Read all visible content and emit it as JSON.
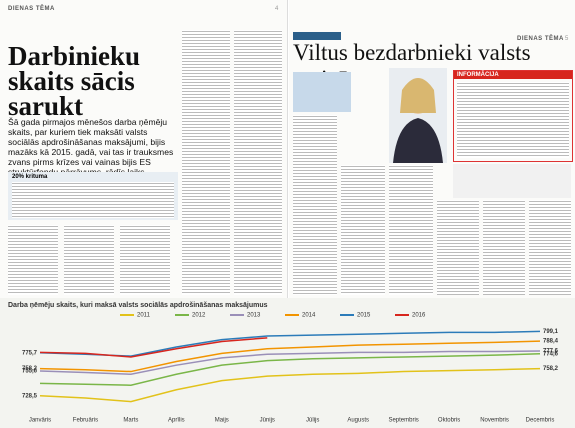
{
  "left_page": {
    "section": "DIENAS TĒMA",
    "page_number": "4",
    "headline": "Darbinieku skaits sācis sarukt",
    "lead": "Šā gada pirmajos mēnešos darba ņēmēju skaits, par kuriem tiek maksāti valsts sociālās apdrošināšanas maksājumi, bijis mazāks kā 2015. gadā, vai tas ir trauksmes zvans pirms krīzes vai vainas bijis ES struktūrfondu pārrāvums, rādīs laiks",
    "box_title": "20% krituma"
  },
  "right_page": {
    "section": "DIENAS TĒMA",
    "page_number": "5",
    "headline": "Viltus bezdarbnieki valsts maizē",
    "info_title": "INFORMĀCIJA"
  },
  "chart_data": {
    "type": "line",
    "title": "Darba ņēmēju skaits, kuri maksā valsts sociālās apdrošināšanas maksājumus",
    "categories": [
      "Janvāris",
      "Februāris",
      "Marts",
      "Aprīlis",
      "Maijs",
      "Jūnijs",
      "Jūlijs",
      "Augusts",
      "Septembris",
      "Oktobris",
      "Novembris",
      "Decembris"
    ],
    "ylim": [
      715,
      805
    ],
    "series": [
      {
        "name": "2011",
        "color": "#e2c21a",
        "values": [
          728.5,
          726,
          722,
          735,
          745,
          750,
          752,
          753,
          755,
          756,
          757,
          758.2
        ],
        "value_labels": [
          "728,5",
          null,
          null,
          null,
          null,
          null,
          null,
          null,
          null,
          null,
          null,
          "758,2"
        ]
      },
      {
        "name": "2012",
        "color": "#7ab648",
        "values": [
          742,
          741,
          740,
          752,
          762,
          767,
          769,
          770,
          771,
          772,
          773,
          774.6
        ],
        "value_labels": [
          null,
          null,
          null,
          null,
          null,
          null,
          null,
          null,
          null,
          null,
          null,
          "774,6"
        ]
      },
      {
        "name": "2013",
        "color": "#9a8fb8",
        "values": [
          755.6,
          754,
          752,
          762,
          770,
          774,
          775,
          776,
          776,
          777,
          777,
          777.6
        ],
        "value_labels": [
          "755,6",
          null,
          null,
          null,
          null,
          null,
          null,
          null,
          null,
          null,
          null,
          "777,6"
        ]
      },
      {
        "name": "2014",
        "color": "#f29400",
        "values": [
          758.2,
          757,
          755,
          766,
          775,
          780,
          782,
          784,
          785,
          786,
          787,
          788.4
        ],
        "value_labels": [
          "758,2",
          null,
          null,
          null,
          null,
          null,
          null,
          null,
          null,
          null,
          null,
          "788,4"
        ]
      },
      {
        "name": "2015",
        "color": "#2b7bb9",
        "values": [
          775.7,
          774,
          772,
          782,
          790,
          794,
          795,
          796,
          797,
          798,
          798,
          799.1
        ],
        "value_labels": [
          "775,7",
          null,
          null,
          null,
          null,
          null,
          null,
          null,
          null,
          null,
          null,
          "799,1"
        ]
      },
      {
        "name": "2016",
        "color": "#d7261e",
        "values": [
          776,
          775,
          771,
          780,
          788,
          792,
          null,
          null,
          null,
          null,
          null,
          null
        ],
        "value_labels": [
          null,
          null,
          null,
          null,
          null,
          null,
          null,
          null,
          null,
          null,
          null,
          null
        ]
      }
    ]
  }
}
